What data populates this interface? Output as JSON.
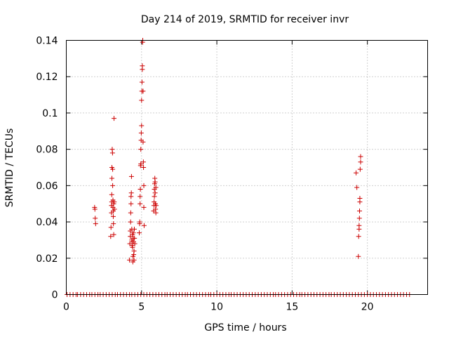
{
  "chart_data": {
    "type": "scatter",
    "title": "Day 214 of 2019, SRMTID for receiver invr",
    "xlabel": "GPS time / hours",
    "ylabel": "SRMTID / TECUs",
    "xlim": [
      0,
      24
    ],
    "ylim": [
      0,
      0.14
    ],
    "xticks": [
      "0",
      "5",
      "10",
      "15",
      "20"
    ],
    "yticks": [
      "0",
      "0.02",
      "0.04",
      "0.06",
      "0.08",
      "0.1",
      "0.12",
      "0.14"
    ],
    "grid": true,
    "marker": "plus",
    "color": "#cc0000",
    "series": [
      {
        "points": [
          [
            1.88,
            0.048
          ],
          [
            1.9,
            0.047
          ],
          [
            1.92,
            0.042
          ],
          [
            1.95,
            0.039
          ],
          [
            2.95,
            0.032
          ],
          [
            2.97,
            0.037
          ],
          [
            3.0,
            0.045
          ],
          [
            3.0,
            0.049
          ],
          [
            3.02,
            0.051
          ],
          [
            3.02,
            0.055
          ],
          [
            3.03,
            0.064
          ],
          [
            3.03,
            0.07
          ],
          [
            3.05,
            0.08
          ],
          [
            3.07,
            0.078
          ],
          [
            3.08,
            0.069
          ],
          [
            3.08,
            0.06
          ],
          [
            3.1,
            0.052
          ],
          [
            3.1,
            0.048
          ],
          [
            3.12,
            0.046
          ],
          [
            3.12,
            0.043
          ],
          [
            3.13,
            0.039
          ],
          [
            3.15,
            0.033
          ],
          [
            3.15,
            0.05
          ],
          [
            3.17,
            0.097
          ],
          [
            3.18,
            0.051
          ],
          [
            3.2,
            0.047
          ],
          [
            4.2,
            0.019
          ],
          [
            4.22,
            0.028
          ],
          [
            4.25,
            0.032
          ],
          [
            4.25,
            0.035
          ],
          [
            4.27,
            0.04
          ],
          [
            4.28,
            0.045
          ],
          [
            4.3,
            0.05
          ],
          [
            4.3,
            0.054
          ],
          [
            4.32,
            0.056
          ],
          [
            4.33,
            0.065
          ],
          [
            4.35,
            0.036
          ],
          [
            4.35,
            0.03
          ],
          [
            4.37,
            0.027
          ],
          [
            4.38,
            0.029
          ],
          [
            4.4,
            0.033
          ],
          [
            4.4,
            0.026
          ],
          [
            4.42,
            0.018
          ],
          [
            4.43,
            0.021
          ],
          [
            4.45,
            0.031
          ],
          [
            4.45,
            0.034
          ],
          [
            4.47,
            0.029
          ],
          [
            4.48,
            0.022
          ],
          [
            4.5,
            0.019
          ],
          [
            4.5,
            0.024
          ],
          [
            4.52,
            0.036
          ],
          [
            4.53,
            0.031
          ],
          [
            4.55,
            0.028
          ],
          [
            4.85,
            0.034
          ],
          [
            4.87,
            0.039
          ],
          [
            4.88,
            0.04
          ],
          [
            4.9,
            0.05
          ],
          [
            4.9,
            0.054
          ],
          [
            4.92,
            0.058
          ],
          [
            4.93,
            0.071
          ],
          [
            4.95,
            0.072
          ],
          [
            4.95,
            0.08
          ],
          [
            4.97,
            0.085
          ],
          [
            4.98,
            0.089
          ],
          [
            5.0,
            0.093
          ],
          [
            5.0,
            0.107
          ],
          [
            5.02,
            0.112
          ],
          [
            5.03,
            0.117
          ],
          [
            5.05,
            0.124
          ],
          [
            5.05,
            0.126
          ],
          [
            5.07,
            0.139
          ],
          [
            5.08,
            0.14
          ],
          [
            5.1,
            0.112
          ],
          [
            5.1,
            0.084
          ],
          [
            5.12,
            0.073
          ],
          [
            5.13,
            0.07
          ],
          [
            5.15,
            0.06
          ],
          [
            5.15,
            0.048
          ],
          [
            5.17,
            0.038
          ],
          [
            5.8,
            0.046
          ],
          [
            5.82,
            0.049
          ],
          [
            5.83,
            0.051
          ],
          [
            5.85,
            0.054
          ],
          [
            5.85,
            0.058
          ],
          [
            5.87,
            0.061
          ],
          [
            5.88,
            0.064
          ],
          [
            5.9,
            0.062
          ],
          [
            5.9,
            0.056
          ],
          [
            5.92,
            0.05
          ],
          [
            5.93,
            0.047
          ],
          [
            5.95,
            0.045
          ],
          [
            5.95,
            0.059
          ],
          [
            5.97,
            0.049
          ],
          [
            19.25,
            0.067
          ],
          [
            19.3,
            0.059
          ],
          [
            19.4,
            0.021
          ],
          [
            19.42,
            0.032
          ],
          [
            19.45,
            0.036
          ],
          [
            19.45,
            0.038
          ],
          [
            19.47,
            0.042
          ],
          [
            19.48,
            0.046
          ],
          [
            19.5,
            0.051
          ],
          [
            19.5,
            0.053
          ],
          [
            19.52,
            0.069
          ],
          [
            19.55,
            0.073
          ],
          [
            19.55,
            0.076
          ]
        ]
      }
    ],
    "zero_points": [
      0.05,
      0.25,
      0.45,
      0.65,
      0.75,
      0.95,
      1.15,
      1.35,
      1.55,
      1.7,
      1.9,
      2.1,
      2.25,
      2.45,
      2.65,
      2.85,
      3.05,
      3.25,
      3.4,
      3.6,
      3.8,
      4.0,
      4.2,
      4.35,
      4.55,
      4.75,
      4.95,
      5.15,
      5.35,
      5.55,
      5.75,
      5.95,
      6.15,
      6.35,
      6.55,
      6.7,
      6.9,
      7.1,
      7.3,
      7.5,
      7.7,
      7.9,
      8.05,
      8.25,
      8.45,
      8.65,
      8.85,
      9.05,
      9.25,
      9.45,
      9.6,
      9.8,
      10.0,
      10.2,
      10.4,
      10.6,
      10.8,
      10.95,
      11.15,
      11.35,
      11.55,
      11.75,
      11.95,
      12.15,
      12.35,
      12.55,
      12.75,
      12.95,
      13.15,
      13.35,
      13.55,
      13.75,
      13.9,
      14.1,
      14.3,
      14.5,
      14.7,
      14.9,
      15.1,
      15.3,
      15.5,
      15.65,
      15.85,
      16.05,
      16.25,
      16.45,
      16.65,
      16.85,
      17.05,
      17.25,
      17.45,
      17.6,
      17.8,
      18.0,
      18.2,
      18.4,
      18.6,
      18.8,
      19.0,
      19.2,
      19.4,
      19.6,
      19.8,
      20.0,
      20.2,
      20.4,
      20.6,
      20.8,
      21.0,
      21.2,
      21.4,
      21.6,
      21.8,
      22.0,
      22.2,
      22.4,
      22.6,
      22.8
    ]
  }
}
